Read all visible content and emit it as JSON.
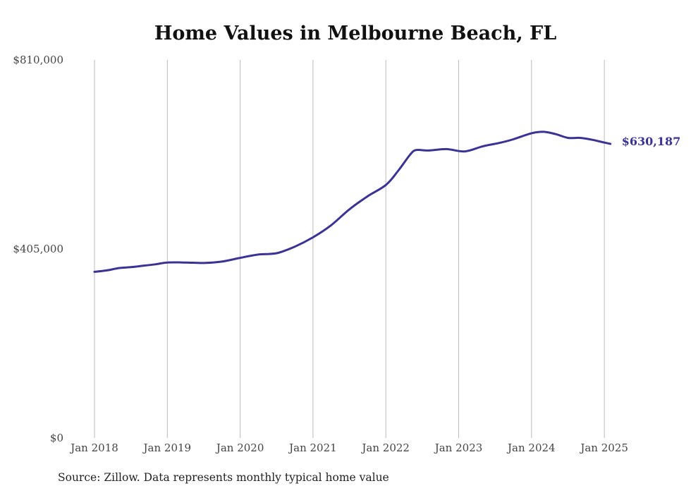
{
  "chart_data": {
    "type": "line",
    "title": "Home Values in Melbourne Beach, FL",
    "source": "Source: Zillow. Data represents monthly typical home value",
    "xlabel": "",
    "ylabel": "",
    "ylim": [
      0,
      810000
    ],
    "y_ticks": [
      {
        "value": 0,
        "label": "$0"
      },
      {
        "value": 405000,
        "label": "$405,000"
      },
      {
        "value": 810000,
        "label": "$810,000"
      }
    ],
    "x_ticks": [
      {
        "date": "2018-01",
        "label": "Jan 2018"
      },
      {
        "date": "2019-01",
        "label": "Jan 2019"
      },
      {
        "date": "2020-01",
        "label": "Jan 2020"
      },
      {
        "date": "2021-01",
        "label": "Jan 2021"
      },
      {
        "date": "2022-01",
        "label": "Jan 2022"
      },
      {
        "date": "2023-01",
        "label": "Jan 2023"
      },
      {
        "date": "2024-01",
        "label": "Jan 2024"
      },
      {
        "date": "2025-01",
        "label": "Jan 2025"
      }
    ],
    "grid": "vertical",
    "line_color": "#3b3394",
    "end_label": "$630,187",
    "series": [
      {
        "points": [
          [
            "2018-01",
            356000
          ],
          [
            "2018-03",
            359000
          ],
          [
            "2018-05",
            364000
          ],
          [
            "2018-07",
            366000
          ],
          [
            "2018-09",
            369000
          ],
          [
            "2018-11",
            372000
          ],
          [
            "2019-01",
            376000
          ],
          [
            "2019-04",
            376000
          ],
          [
            "2019-07",
            375000
          ],
          [
            "2019-10",
            378000
          ],
          [
            "2020-01",
            386000
          ],
          [
            "2020-04",
            393000
          ],
          [
            "2020-07",
            396000
          ],
          [
            "2020-10",
            410000
          ],
          [
            "2021-01",
            430000
          ],
          [
            "2021-04",
            456000
          ],
          [
            "2021-07",
            490000
          ],
          [
            "2021-10",
            518000
          ],
          [
            "2022-01",
            542000
          ],
          [
            "2022-03",
            572000
          ],
          [
            "2022-05",
            607000
          ],
          [
            "2022-06",
            617000
          ],
          [
            "2022-08",
            616000
          ],
          [
            "2022-11",
            619000
          ],
          [
            "2023-02",
            614000
          ],
          [
            "2023-05",
            625000
          ],
          [
            "2023-08",
            633000
          ],
          [
            "2023-10",
            640000
          ],
          [
            "2024-01",
            653000
          ],
          [
            "2024-03",
            656000
          ],
          [
            "2024-05",
            651000
          ],
          [
            "2024-07",
            643000
          ],
          [
            "2024-09",
            643000
          ],
          [
            "2024-11",
            639000
          ],
          [
            "2025-01",
            633000
          ],
          [
            "2025-02",
            630187
          ]
        ]
      }
    ]
  }
}
